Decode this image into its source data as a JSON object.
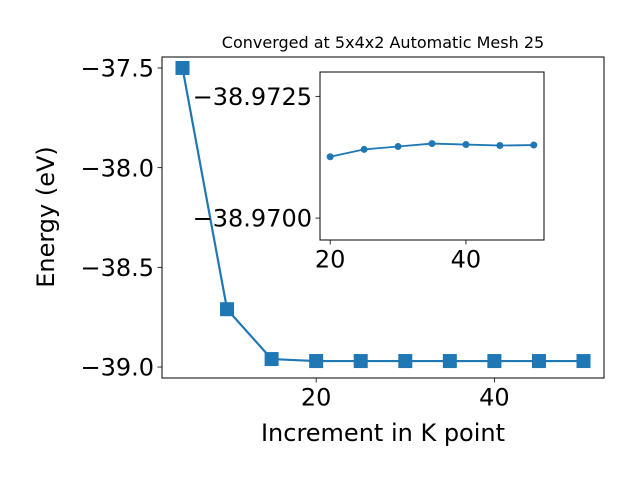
{
  "chart_data": [
    {
      "type": "line",
      "title": "Converged at 5x4x2 Automatic Mesh 25",
      "xlabel": "Increment in K point",
      "ylabel": "Energy (eV)",
      "xlim": [
        2.7,
        52.3
      ],
      "ylim": [
        -39.055,
        -37.445
      ],
      "xticks": [
        20,
        40
      ],
      "yticks": [
        -37.5,
        -38.0,
        -38.5,
        -39.0
      ],
      "ytick_labels": [
        "−37.5",
        "−38.0",
        "−38.5",
        "−39.0"
      ],
      "marker": "square",
      "color": "#1f77b4",
      "grid": false,
      "series": [
        {
          "x": [
            5,
            10,
            15,
            20,
            25,
            30,
            35,
            40,
            45,
            50
          ],
          "y": [
            -37.5,
            -38.71,
            -38.96,
            -38.97,
            -38.97,
            -38.97,
            -38.97,
            -38.97,
            -38.97,
            -38.97
          ]
        }
      ]
    },
    {
      "type": "line",
      "title": "",
      "xlabel": "",
      "ylabel": "",
      "xlim": [
        18.5,
        51.5
      ],
      "ylim": [
        -38.96955,
        -38.973
      ],
      "xticks": [
        20,
        40
      ],
      "yticks": [
        -38.9725,
        -38.97
      ],
      "ytick_labels": [
        "−38.9725",
        "−38.9700"
      ],
      "marker": "circle",
      "color": "#1f77b4",
      "grid": false,
      "series": [
        {
          "x": [
            20,
            25,
            30,
            35,
            40,
            45,
            50
          ],
          "y": [
            -38.97126,
            -38.97141,
            -38.97147,
            -38.97153,
            -38.97151,
            -38.97149,
            -38.9715
          ]
        }
      ]
    }
  ]
}
